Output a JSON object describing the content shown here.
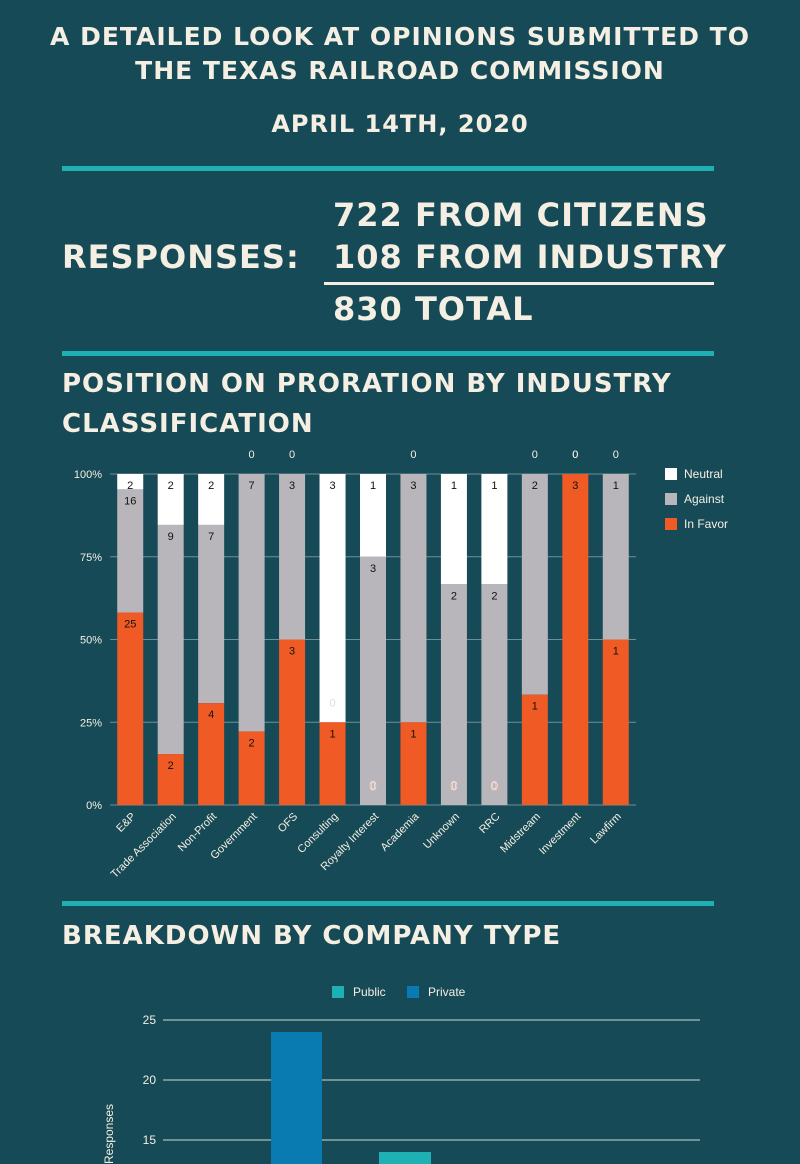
{
  "header": {
    "title_line1": "A DETAILED LOOK AT OPINIONS SUBMITTED TO",
    "title_line2": "THE TEXAS RAILROAD COMMISSION",
    "date": "APRIL 14TH, 2020"
  },
  "responses": {
    "label": "RESPONSES:",
    "citizens": "722 FROM CITIZENS",
    "industry": "108 FROM INDUSTRY",
    "total": "830 TOTAL"
  },
  "colors": {
    "background": "#174a57",
    "accent": "#1fb0b4",
    "neutral": "#ffffff",
    "against": "#b8b6bb",
    "in_favor": "#f05a25",
    "public": "#1fb0b4",
    "private": "#0a7bb0"
  },
  "section1": {
    "title": "POSITION ON PRORATION BY INDUSTRY CLASSIFICATION"
  },
  "section2": {
    "title": "BREAKDOWN BY COMPANY TYPE"
  },
  "chart_data": [
    {
      "type": "bar",
      "stacked": true,
      "normalized": true,
      "categories": [
        "E&P",
        "Trade Association",
        "Non-Profit",
        "Government",
        "OFS",
        "Consulting",
        "Royalty Interest",
        "Academia",
        "Unknown",
        "RRC",
        "Midstream",
        "Investment",
        "Lawfirm"
      ],
      "series": [
        {
          "name": "In Favor",
          "values": [
            25,
            2,
            4,
            2,
            3,
            1,
            0,
            1,
            0,
            0,
            1,
            3,
            1
          ]
        },
        {
          "name": "Against",
          "values": [
            16,
            9,
            7,
            7,
            3,
            0,
            3,
            3,
            2,
            2,
            2,
            0,
            1
          ]
        },
        {
          "name": "Neutral",
          "values": [
            2,
            2,
            2,
            0,
            0,
            3,
            1,
            0,
            1,
            1,
            0,
            0,
            0
          ]
        }
      ],
      "yticks": [
        "0%",
        "25%",
        "50%",
        "75%",
        "100%"
      ],
      "ylim": [
        0,
        100
      ],
      "legend": "right",
      "grid": true
    },
    {
      "type": "bar",
      "series": [
        {
          "name": "Public",
          "values": [
            14
          ]
        },
        {
          "name": "Private",
          "values": [
            24
          ]
        }
      ],
      "yticks": [
        "15",
        "20",
        "25"
      ],
      "ylabel": "Responses",
      "legend": "top",
      "grid": true
    }
  ]
}
